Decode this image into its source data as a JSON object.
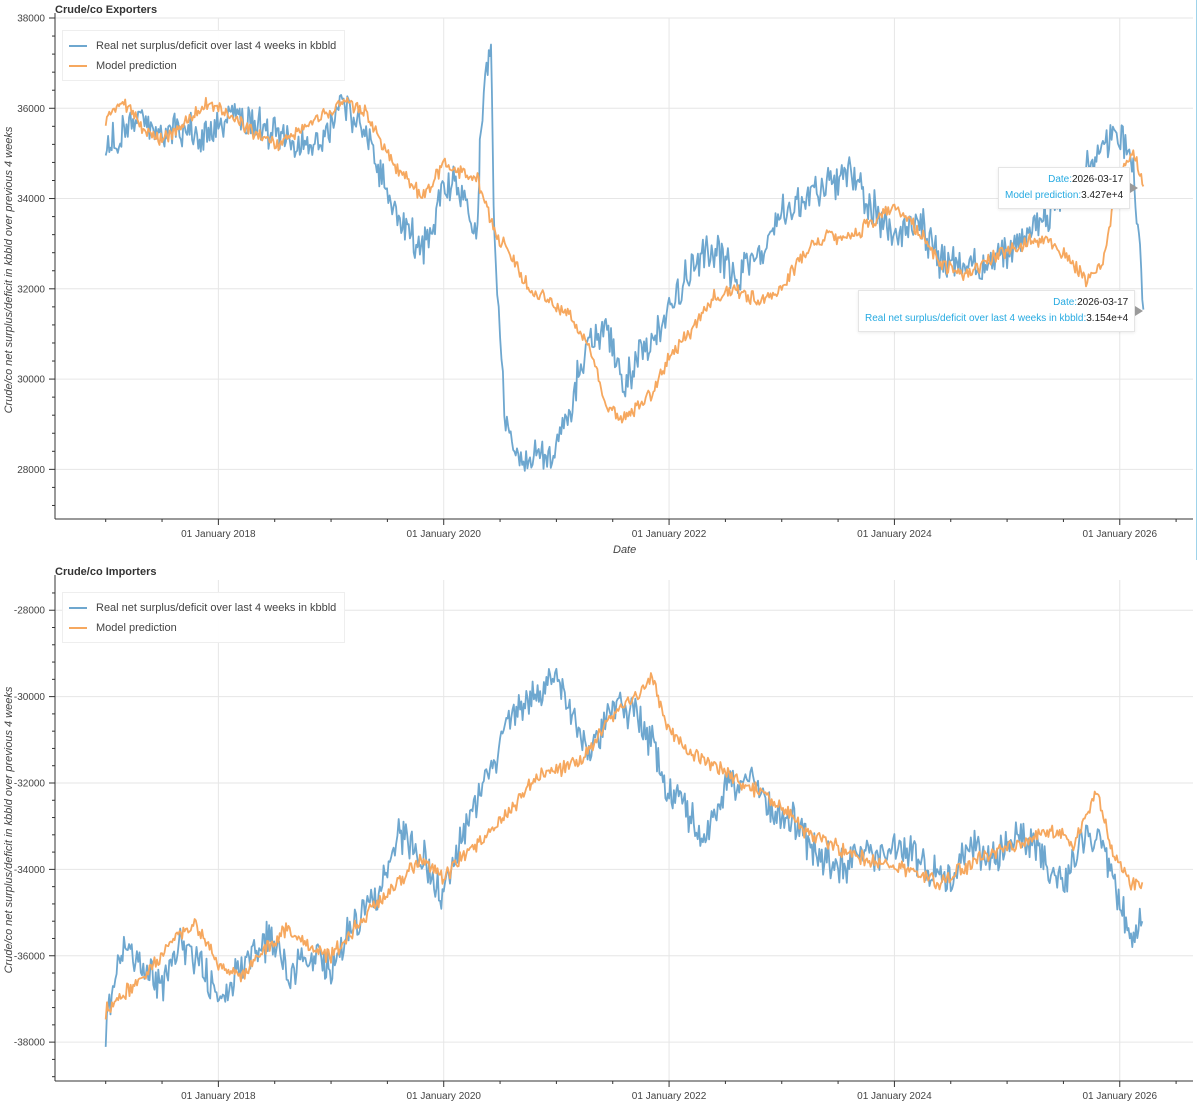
{
  "colors": {
    "real": "#6ea7cf",
    "model": "#f6a85f",
    "grid": "#e6e6e6",
    "axis": "#333333",
    "tooltip_key": "#26aae1"
  },
  "legend": {
    "real": "Real net surplus/deficit over last 4 weeks in kbbld",
    "model": "Model prediction"
  },
  "charts": {
    "top": {
      "title": "Crude/co Exporters",
      "ylabel": "Crude/co net surplus/deficit in kbbld over previous 4 weeks",
      "xlabel": "Date",
      "tooltip_model": {
        "date_key": "Date:",
        "date_val": "2026-03-17",
        "key": "Model prediction:",
        "val": "3.427e+4"
      },
      "tooltip_real": {
        "date_key": "Date:",
        "date_val": "2026-03-17",
        "key": "Real net surplus/deficit over last 4 weeks in kbbld:",
        "val": "3.154e+4"
      }
    },
    "bottom": {
      "title": "Crude/co Importers",
      "ylabel": "Crude/co net surplus/deficit in kbbld over previous 4 weeks"
    }
  },
  "chart_data": [
    {
      "type": "line",
      "title": "Crude/co Exporters",
      "xlabel": "Date",
      "ylabel": "Crude/co net surplus/deficit in kbbld over previous 4 weeks",
      "xlim": [
        2016.55,
        2026.65
      ],
      "ylim": [
        26900,
        38000
      ],
      "yticks": [
        28000,
        30000,
        32000,
        34000,
        36000,
        38000
      ],
      "xticks": [
        2018,
        2020,
        2022,
        2024,
        2026
      ],
      "xtick_labels": [
        "01 January 2018",
        "01 January 2020",
        "01 January 2022",
        "01 January 2024",
        "01 January 2026"
      ],
      "series": [
        {
          "name": "Real net surplus/deficit over last 4 weeks in kbbld",
          "x": [
            2017.0,
            2017.15,
            2017.3,
            2017.5,
            2017.7,
            2017.9,
            2018.1,
            2018.3,
            2018.5,
            2018.7,
            2018.9,
            2019.1,
            2019.3,
            2019.45,
            2019.6,
            2019.8,
            2019.9,
            2020.0,
            2020.15,
            2020.3,
            2020.32,
            2020.38,
            2020.42,
            2020.45,
            2020.5,
            2020.55,
            2020.65,
            2020.8,
            2020.95,
            2021.1,
            2021.25,
            2021.45,
            2021.6,
            2021.8,
            2022.0,
            2022.2,
            2022.4,
            2022.6,
            2022.8,
            2023.0,
            2023.2,
            2023.4,
            2023.6,
            2023.8,
            2024.0,
            2024.2,
            2024.4,
            2024.6,
            2024.8,
            2025.0,
            2025.2,
            2025.4,
            2025.55,
            2025.7,
            2025.85,
            2025.95,
            2026.05,
            2026.12,
            2026.17,
            2026.21
          ],
          "values": [
            35200,
            35400,
            35800,
            35300,
            35600,
            35400,
            35900,
            35700,
            35500,
            35100,
            35300,
            36000,
            35500,
            34500,
            33500,
            32800,
            33200,
            34400,
            34200,
            33300,
            35200,
            36800,
            37300,
            33000,
            31000,
            28800,
            28300,
            28400,
            28200,
            29100,
            30600,
            31200,
            29900,
            30800,
            31600,
            32500,
            32900,
            32300,
            32700,
            33600,
            33900,
            34300,
            34600,
            33800,
            33200,
            33500,
            32700,
            32400,
            32500,
            32800,
            33200,
            33800,
            34100,
            34700,
            35100,
            35500,
            35200,
            34700,
            33200,
            31540
          ]
        },
        {
          "name": "Model prediction",
          "x": [
            2017.0,
            2017.15,
            2017.3,
            2017.5,
            2017.7,
            2017.9,
            2018.1,
            2018.3,
            2018.5,
            2018.7,
            2018.9,
            2019.1,
            2019.3,
            2019.45,
            2019.6,
            2019.8,
            2019.9,
            2020.0,
            2020.15,
            2020.3,
            2020.45,
            2020.6,
            2020.75,
            2020.9,
            2021.1,
            2021.3,
            2021.45,
            2021.55,
            2021.7,
            2021.85,
            2022.0,
            2022.2,
            2022.4,
            2022.6,
            2022.8,
            2023.0,
            2023.2,
            2023.4,
            2023.6,
            2023.8,
            2024.0,
            2024.2,
            2024.4,
            2024.6,
            2024.8,
            2025.0,
            2025.2,
            2025.4,
            2025.55,
            2025.7,
            2025.85,
            2025.95,
            2026.05,
            2026.12,
            2026.17,
            2026.21
          ],
          "values": [
            35800,
            36200,
            35600,
            35300,
            35700,
            36100,
            35900,
            35500,
            35200,
            35500,
            35800,
            36100,
            36000,
            35200,
            34600,
            34100,
            34300,
            34800,
            34600,
            34400,
            33300,
            32700,
            32000,
            31800,
            31500,
            30600,
            29400,
            29100,
            29300,
            29700,
            30500,
            31100,
            31800,
            32000,
            31700,
            32000,
            32800,
            33200,
            33100,
            33500,
            33800,
            33300,
            32600,
            32300,
            32600,
            32800,
            33100,
            33000,
            32700,
            32200,
            32600,
            34000,
            34800,
            35000,
            34600,
            34270
          ]
        }
      ]
    },
    {
      "type": "line",
      "title": "Crude/co Importers",
      "xlabel": "",
      "ylabel": "Crude/co net surplus/deficit in kbbld over previous 4 weeks",
      "xlim": [
        2016.55,
        2026.65
      ],
      "ylim": [
        -38900,
        -27300
      ],
      "yticks": [
        -38000,
        -36000,
        -34000,
        -32000,
        -30000,
        -28000
      ],
      "xticks": [
        2018,
        2020,
        2022,
        2024,
        2026
      ],
      "xtick_labels": [
        "01 January 2018",
        "01 January 2020",
        "01 January 2022",
        "01 January 2024",
        "01 January 2026"
      ],
      "series": [
        {
          "name": "Real net surplus/deficit over last 4 weeks in kbbld",
          "x": [
            2017.0,
            2017.15,
            2017.3,
            2017.5,
            2017.65,
            2017.85,
            2018.05,
            2018.25,
            2018.45,
            2018.65,
            2018.85,
            2019.0,
            2019.2,
            2019.4,
            2019.6,
            2019.75,
            2019.85,
            2020.0,
            2020.2,
            2020.4,
            2020.6,
            2020.8,
            2021.0,
            2021.15,
            2021.3,
            2021.5,
            2021.7,
            2021.85,
            2022.0,
            2022.15,
            2022.3,
            2022.5,
            2022.7,
            2022.9,
            2023.1,
            2023.3,
            2023.5,
            2023.7,
            2023.9,
            2024.1,
            2024.3,
            2024.5,
            2024.7,
            2024.9,
            2025.1,
            2025.3,
            2025.5,
            2025.7,
            2025.85,
            2026.0,
            2026.1,
            2026.2
          ],
          "values": [
            -37600,
            -35800,
            -36200,
            -36800,
            -35600,
            -36300,
            -37000,
            -36100,
            -35600,
            -36400,
            -35900,
            -36500,
            -35200,
            -34600,
            -33100,
            -33600,
            -33900,
            -34600,
            -32900,
            -31800,
            -30400,
            -30100,
            -29400,
            -30700,
            -31400,
            -30200,
            -30400,
            -31100,
            -32200,
            -32600,
            -33400,
            -32100,
            -31800,
            -32600,
            -32900,
            -33500,
            -34100,
            -33600,
            -33800,
            -33500,
            -34000,
            -34200,
            -33400,
            -33800,
            -33100,
            -33600,
            -34400,
            -33200,
            -33500,
            -34700,
            -35600,
            -35200
          ]
        },
        {
          "name": "Model prediction",
          "x": [
            2017.0,
            2017.2,
            2017.4,
            2017.6,
            2017.8,
            2018.0,
            2018.2,
            2018.4,
            2018.6,
            2018.8,
            2019.0,
            2019.2,
            2019.4,
            2019.6,
            2019.8,
            2020.0,
            2020.2,
            2020.4,
            2020.6,
            2020.8,
            2021.0,
            2021.2,
            2021.4,
            2021.55,
            2021.7,
            2021.85,
            2022.0,
            2022.2,
            2022.4,
            2022.6,
            2022.8,
            2023.0,
            2023.2,
            2023.4,
            2023.6,
            2023.8,
            2024.0,
            2024.2,
            2024.4,
            2024.6,
            2024.8,
            2025.0,
            2025.2,
            2025.4,
            2025.6,
            2025.8,
            2025.95,
            2026.1,
            2026.2
          ],
          "values": [
            -37300,
            -36800,
            -36300,
            -35600,
            -35300,
            -36200,
            -36500,
            -35900,
            -35400,
            -35800,
            -36000,
            -35400,
            -34800,
            -34300,
            -33800,
            -34200,
            -33600,
            -33200,
            -32600,
            -31900,
            -31700,
            -31500,
            -30800,
            -30300,
            -30000,
            -29500,
            -30800,
            -31300,
            -31600,
            -31900,
            -32200,
            -32500,
            -33100,
            -33400,
            -33600,
            -33800,
            -33900,
            -34100,
            -34300,
            -34000,
            -33700,
            -33500,
            -33300,
            -33100,
            -33400,
            -32200,
            -33700,
            -34300,
            -34300
          ]
        }
      ]
    }
  ]
}
